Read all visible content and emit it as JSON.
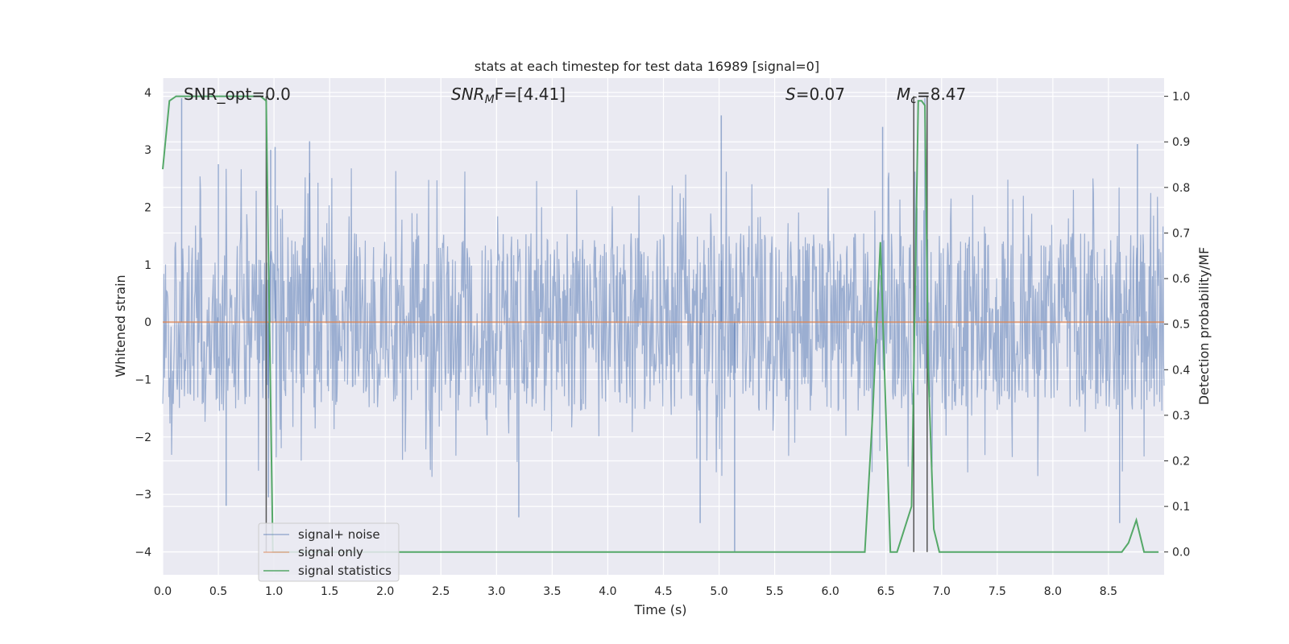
{
  "chart_data": {
    "type": "line",
    "title": "stats at each timestep for test data 16989 [signal=0]",
    "xlabel": "Time (s)",
    "ylabel_left": "Whitened strain",
    "ylabel_right": "Detection probability/MF",
    "xlim": [
      0.0,
      9.0
    ],
    "ylim_left": [
      -4.4,
      4.25
    ],
    "ylim_right": [
      -0.05,
      1.04
    ],
    "x_ticks": [
      "0.0",
      "0.5",
      "1.0",
      "1.5",
      "2.0",
      "2.5",
      "3.0",
      "3.5",
      "4.0",
      "4.5",
      "5.0",
      "5.5",
      "6.0",
      "6.5",
      "7.0",
      "7.5",
      "8.0",
      "8.5"
    ],
    "y_ticks_left": [
      "4",
      "3",
      "2",
      "1",
      "0",
      "−1",
      "−2",
      "−3",
      "−4"
    ],
    "y_ticks_right": [
      "1.0",
      "0.9",
      "0.8",
      "0.7",
      "0.6",
      "0.5",
      "0.4",
      "0.3",
      "0.2",
      "0.1",
      "0.0"
    ],
    "grid": true,
    "legend_position": "lower-left",
    "annotations": {
      "snr_opt": "SNR_opt=0.0",
      "snr_mf_main": "SNR",
      "snr_mf_sub": "M",
      "snr_mf_rest": "F=[4.41]",
      "s_var": "S",
      "s_val": "=0.07",
      "mc_var": "M",
      "mc_sub": "c",
      "mc_val": "=8.47"
    },
    "vertical_lines_x": [
      0.93,
      6.75,
      6.87
    ],
    "series": [
      {
        "name": "signal+ noise",
        "color": "#4c72b0",
        "note_values": "dense whitened noise, approx. uniform band -1.6..1.6 with spikes to +3.9 / -4.0",
        "spikes": [
          [
            0.17,
            3.9
          ],
          [
            0.5,
            2.75
          ],
          [
            0.97,
            3.0
          ],
          [
            1.01,
            3.05
          ],
          [
            1.32,
            3.15
          ],
          [
            5.02,
            3.6
          ],
          [
            6.47,
            3.4
          ],
          [
            6.85,
            3.9
          ],
          [
            8.76,
            3.1
          ],
          [
            5.14,
            -4.0
          ],
          [
            0.95,
            -3.05
          ],
          [
            0.57,
            -3.2
          ],
          [
            3.2,
            -3.4
          ],
          [
            4.83,
            -3.5
          ],
          [
            8.6,
            -3.5
          ]
        ]
      },
      {
        "name": "signal only",
        "color": "#dd8452",
        "x": [
          0.0,
          9.0
        ],
        "y": [
          0.0,
          0.0
        ]
      },
      {
        "name": "signal statistics",
        "color": "#55a868",
        "axis": "right",
        "x": [
          0.0,
          0.06,
          0.12,
          0.2,
          0.5,
          0.88,
          0.93,
          0.99,
          1.05,
          2.0,
          4.0,
          6.0,
          6.31,
          6.38,
          6.45,
          6.5,
          6.54,
          6.6,
          6.73,
          6.79,
          6.82,
          6.85,
          6.88,
          6.93,
          6.98,
          7.02,
          8.0,
          8.62,
          8.68,
          8.75,
          8.82,
          8.95
        ],
        "y": [
          0.84,
          0.99,
          1.0,
          1.0,
          1.0,
          1.0,
          0.99,
          0.0,
          0.0,
          0.0,
          0.0,
          0.0,
          0.0,
          0.3,
          0.68,
          0.3,
          0.0,
          0.0,
          0.1,
          0.99,
          0.99,
          0.98,
          0.4,
          0.05,
          0.0,
          0.0,
          0.0,
          0.0,
          0.02,
          0.07,
          0.0,
          0.0
        ]
      }
    ]
  }
}
